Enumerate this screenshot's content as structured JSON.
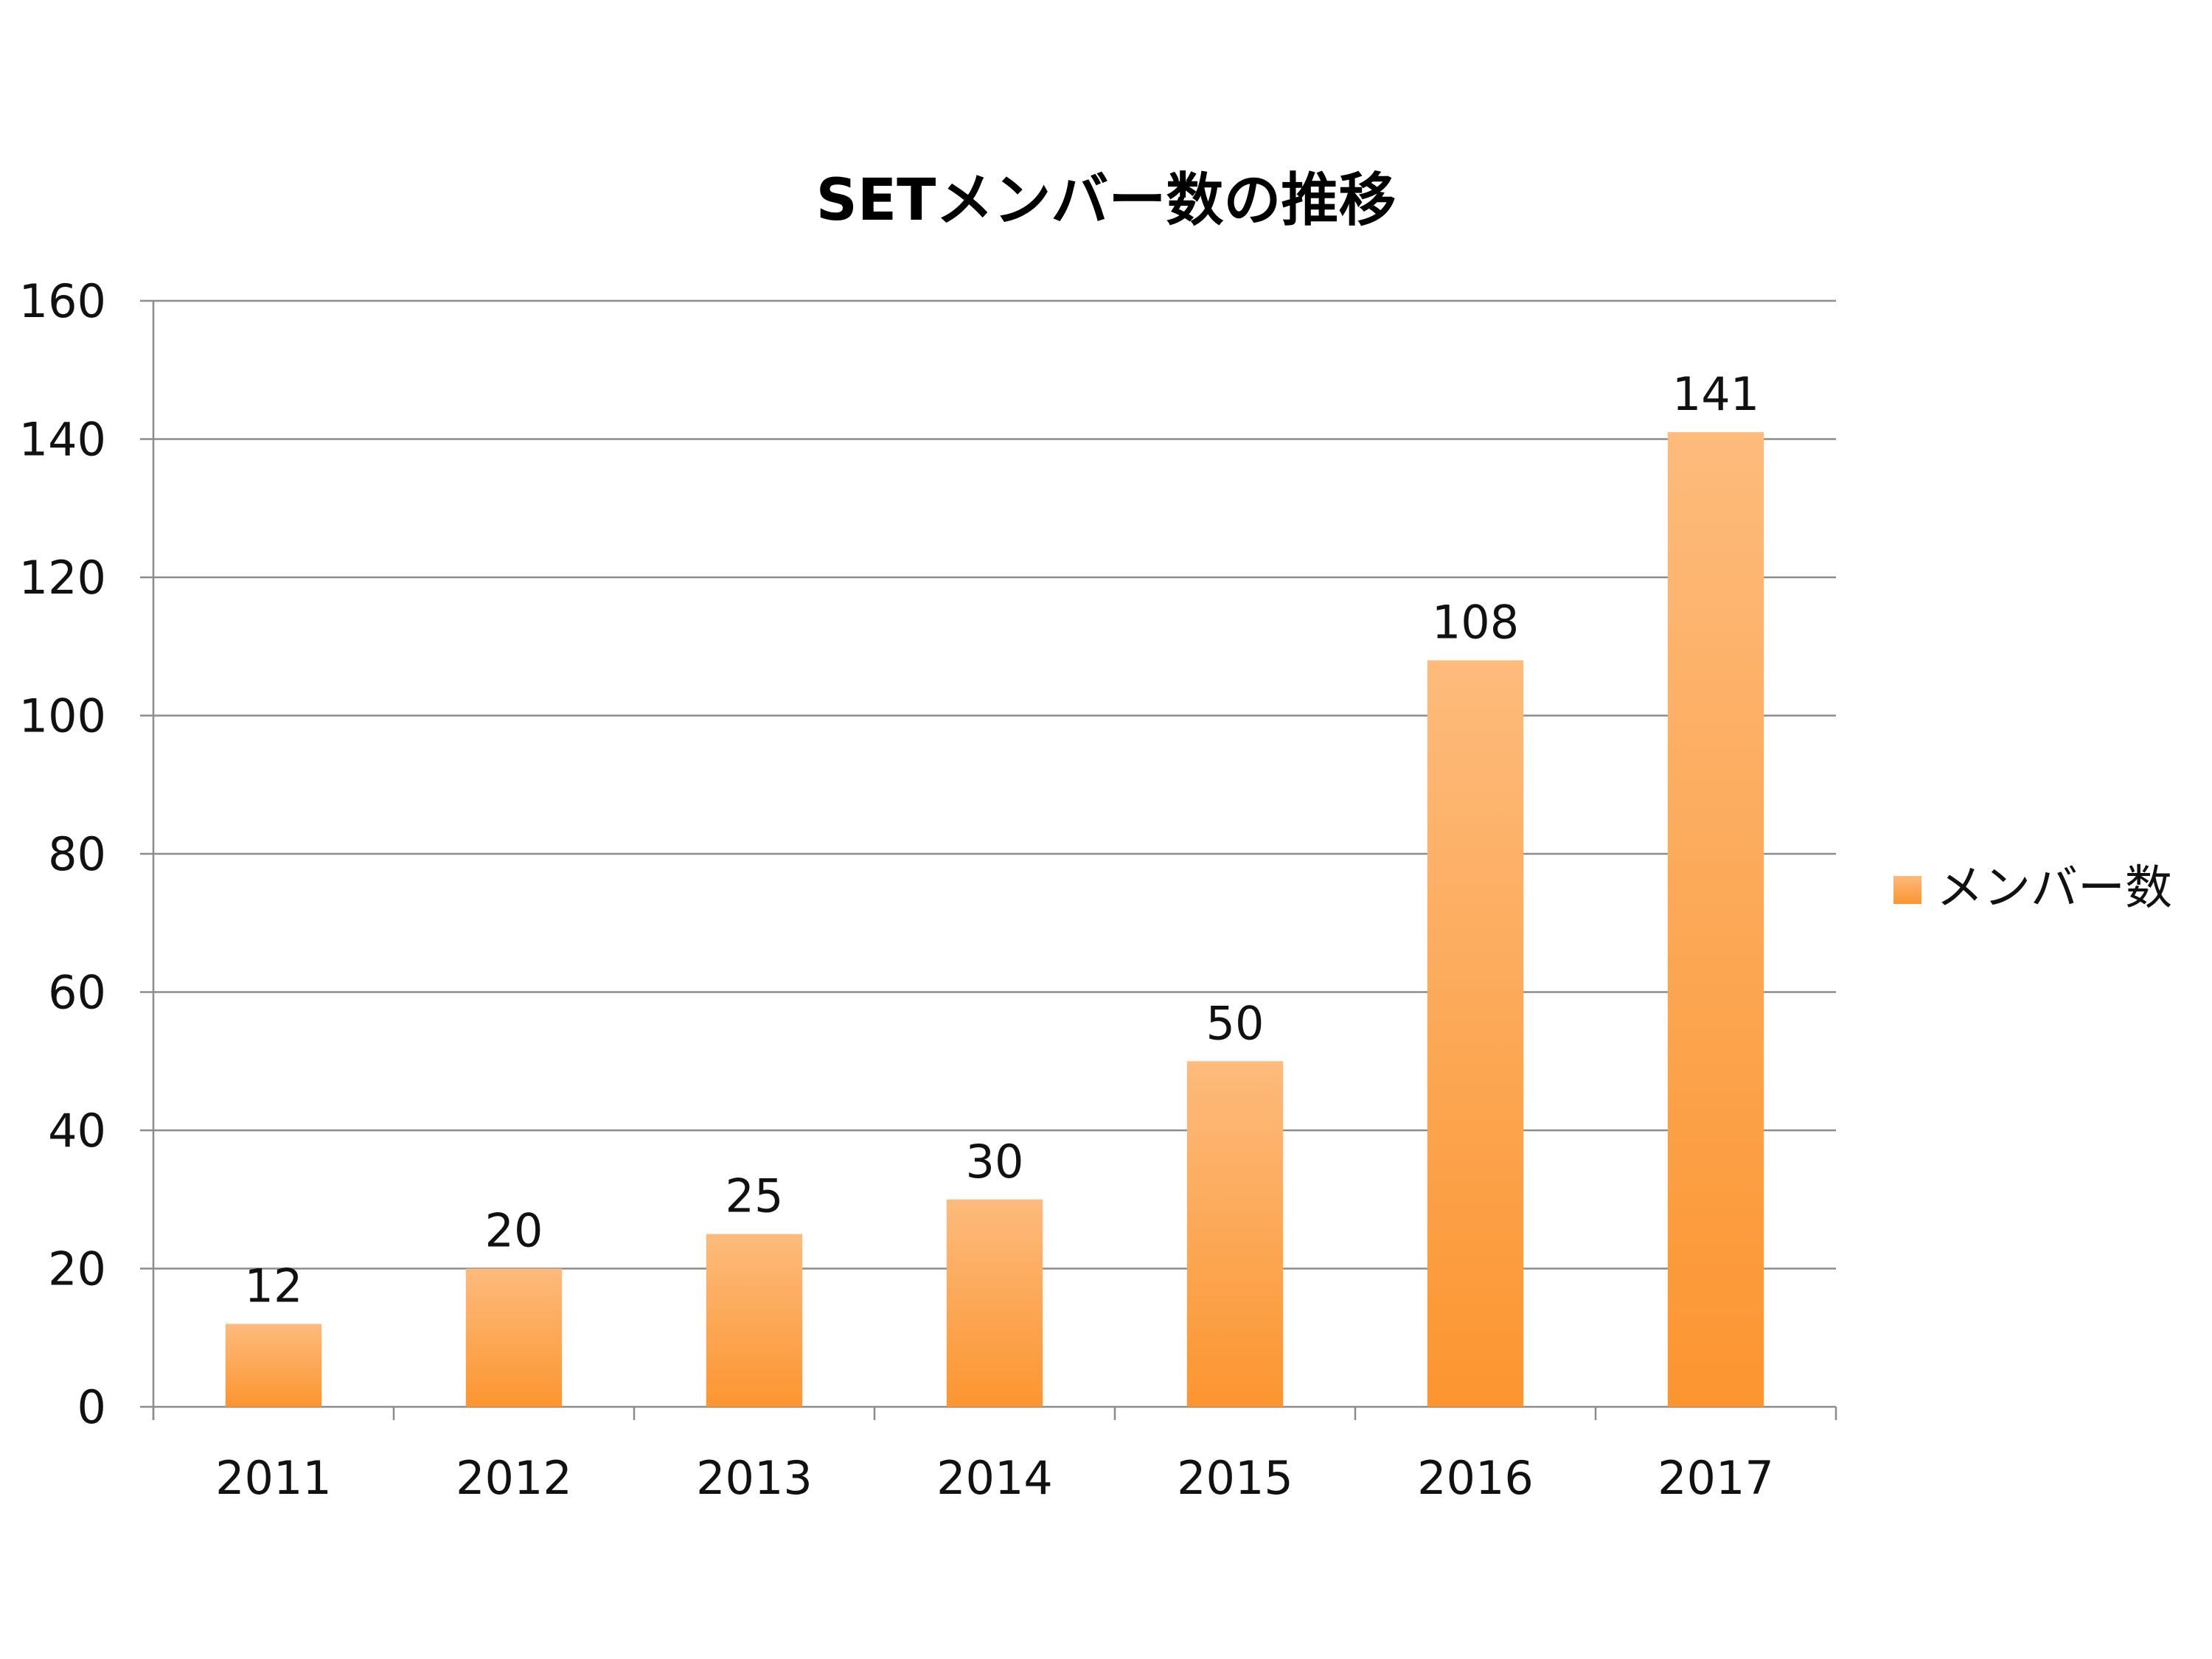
{
  "chart_data": {
    "type": "bar",
    "title": "SETメンバー数の推移",
    "xlabel": "",
    "ylabel": "",
    "categories": [
      "2011",
      "2012",
      "2013",
      "2014",
      "2015",
      "2016",
      "2017"
    ],
    "series": [
      {
        "name": "メンバー数",
        "values": [
          12,
          20,
          25,
          30,
          50,
          108,
          141
        ]
      }
    ],
    "data_labels": [
      "12",
      "20",
      "25",
      "30",
      "50",
      "108",
      "141"
    ],
    "ylim": [
      0,
      160
    ],
    "yticks": [
      0,
      20,
      40,
      60,
      80,
      100,
      120,
      140,
      160
    ],
    "ytick_labels": [
      "0",
      "20",
      "40",
      "60",
      "80",
      "100",
      "120",
      "140",
      "160"
    ],
    "grid": true,
    "legend_position": "right",
    "colors": {
      "bar_top": "#FDBB7C",
      "bar_bottom": "#FC9530",
      "gridline": "#8C8C8C",
      "axis": "#8C8C8C"
    }
  }
}
